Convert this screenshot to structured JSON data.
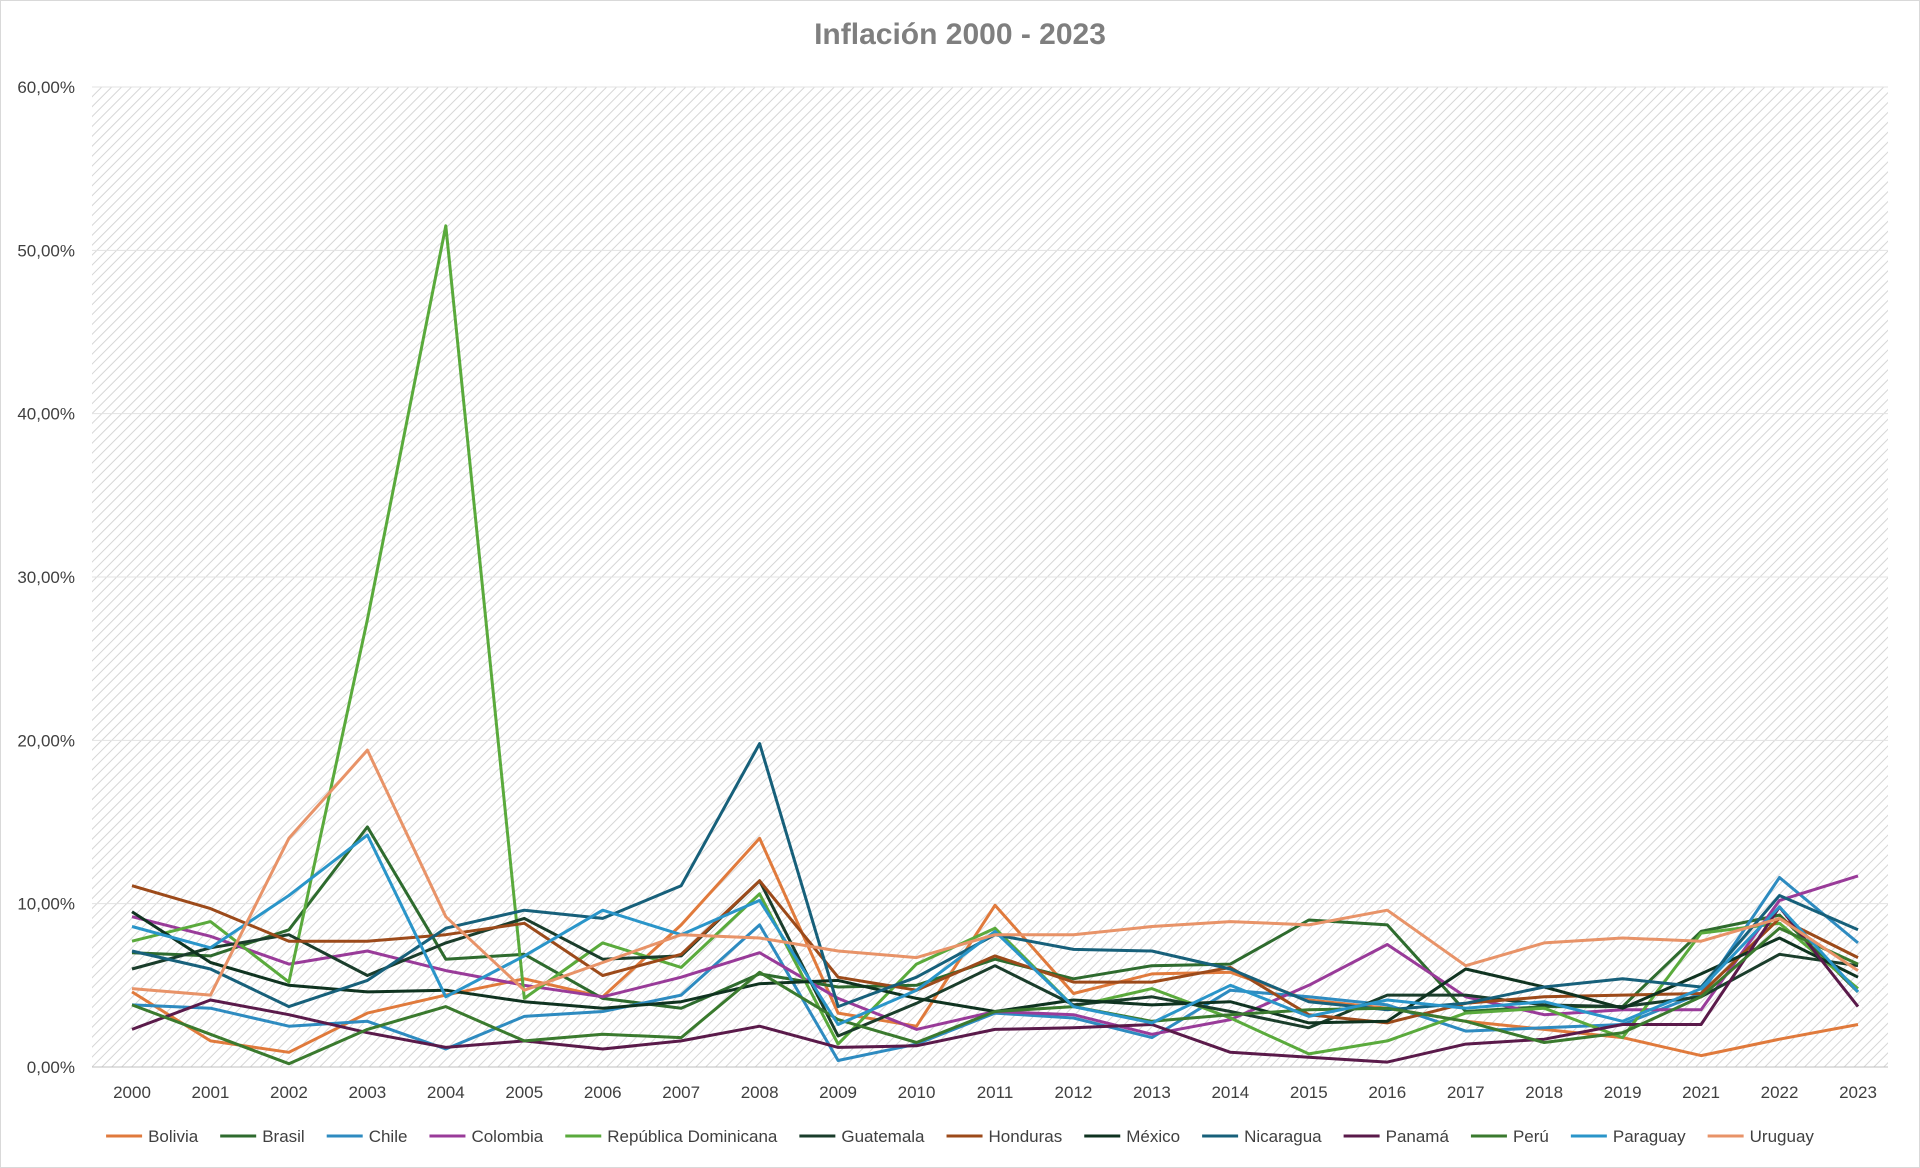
{
  "chart_data": {
    "type": "line",
    "title": "Inflación 2000 - 2023",
    "xlabel": "",
    "ylabel": "",
    "x": [
      "2000",
      "2001",
      "2002",
      "2003",
      "2004",
      "2005",
      "2006",
      "2007",
      "2008",
      "2009",
      "2010",
      "2011",
      "2012",
      "2013",
      "2014",
      "2015",
      "2016",
      "2017",
      "2018",
      "2019",
      "2021",
      "2022",
      "2023"
    ],
    "ylim": [
      0,
      60
    ],
    "y_ticks": [
      "0,00%",
      "10,00%",
      "20,00%",
      "30,00%",
      "40,00%",
      "50,00%",
      "60,00%"
    ],
    "grid": true,
    "legend_position": "bottom",
    "series": [
      {
        "name": "Bolivia",
        "color": "#e07a3c",
        "values": [
          4.6,
          1.6,
          0.9,
          3.3,
          4.4,
          5.4,
          4.3,
          8.7,
          14.0,
          3.3,
          2.5,
          9.9,
          4.5,
          5.7,
          5.8,
          4.1,
          3.6,
          2.8,
          2.3,
          1.8,
          0.7,
          1.7,
          2.6
        ]
      },
      {
        "name": "Brasil",
        "color": "#2e6b2e",
        "values": [
          7.0,
          6.8,
          8.4,
          14.7,
          6.6,
          6.9,
          4.2,
          3.6,
          5.7,
          4.9,
          5.0,
          6.6,
          5.4,
          6.2,
          6.3,
          9.0,
          8.7,
          3.4,
          3.7,
          3.7,
          8.3,
          9.3,
          4.6
        ]
      },
      {
        "name": "Chile",
        "color": "#2e8bc0",
        "values": [
          3.8,
          3.6,
          2.5,
          2.8,
          1.1,
          3.1,
          3.4,
          4.4,
          8.7,
          0.4,
          1.4,
          3.3,
          3.0,
          1.8,
          4.7,
          4.3,
          3.8,
          2.2,
          2.4,
          2.6,
          4.5,
          11.6,
          7.6
        ]
      },
      {
        "name": "Colombia",
        "color": "#993b99",
        "values": [
          9.2,
          8.0,
          6.3,
          7.1,
          5.9,
          5.0,
          4.3,
          5.5,
          7.0,
          4.2,
          2.3,
          3.4,
          3.2,
          2.0,
          2.9,
          5.0,
          7.5,
          4.3,
          3.2,
          3.5,
          3.5,
          10.2,
          11.7
        ]
      },
      {
        "name": "República Dominicana",
        "color": "#5aaa3c",
        "values": [
          7.7,
          8.9,
          5.2,
          27.4,
          51.5,
          4.2,
          7.6,
          6.1,
          10.6,
          1.4,
          6.3,
          8.5,
          3.7,
          4.8,
          3.0,
          0.8,
          1.6,
          3.3,
          3.6,
          1.8,
          8.2,
          8.8,
          4.8
        ]
      },
      {
        "name": "Guatemala",
        "color": "#1a3d2b",
        "values": [
          6.0,
          7.3,
          8.1,
          5.6,
          7.6,
          9.1,
          6.6,
          6.8,
          11.4,
          1.9,
          3.9,
          6.2,
          3.8,
          4.3,
          3.4,
          2.4,
          4.4,
          4.4,
          3.8,
          3.7,
          4.3,
          6.9,
          6.2
        ]
      },
      {
        "name": "Honduras",
        "color": "#9c4a1a",
        "values": [
          11.1,
          9.7,
          7.7,
          7.7,
          8.1,
          8.8,
          5.6,
          6.9,
          11.4,
          5.5,
          4.7,
          6.8,
          5.2,
          5.2,
          6.1,
          3.2,
          2.7,
          3.9,
          4.3,
          4.4,
          4.5,
          9.1,
          6.7
        ]
      },
      {
        "name": "México",
        "color": "#0f3320",
        "values": [
          9.5,
          6.4,
          5.0,
          4.6,
          4.7,
          4.0,
          3.6,
          4.0,
          5.1,
          5.3,
          4.2,
          3.4,
          4.1,
          3.8,
          4.0,
          2.7,
          2.8,
          6.0,
          4.9,
          3.6,
          5.7,
          7.9,
          5.5
        ]
      },
      {
        "name": "Nicaragua",
        "color": "#17607a",
        "values": [
          7.1,
          6.0,
          3.7,
          5.3,
          8.5,
          9.6,
          9.1,
          11.1,
          19.8,
          3.7,
          5.5,
          8.1,
          7.2,
          7.1,
          6.0,
          4.0,
          3.5,
          3.9,
          4.9,
          5.4,
          4.9,
          10.5,
          8.4
        ]
      },
      {
        "name": "Panamá",
        "color": "#5a1a4a",
        "values": [
          2.3,
          4.1,
          3.2,
          2.1,
          1.2,
          1.6,
          1.1,
          1.6,
          2.5,
          1.2,
          1.3,
          2.3,
          2.4,
          2.6,
          0.9,
          0.6,
          0.3,
          1.4,
          1.7,
          2.6,
          2.6,
          9.8,
          3.7
        ]
      },
      {
        "name": "Perú",
        "color": "#3a7a2e",
        "values": [
          3.8,
          2.0,
          0.2,
          2.3,
          3.7,
          1.6,
          2.0,
          1.8,
          5.8,
          2.9,
          1.5,
          3.4,
          3.7,
          2.8,
          3.2,
          3.5,
          3.6,
          2.8,
          1.5,
          2.1,
          4.3,
          8.5,
          6.3
        ]
      },
      {
        "name": "Paraguay",
        "color": "#2a95c9",
        "values": [
          8.6,
          7.3,
          10.5,
          14.2,
          4.3,
          6.8,
          9.6,
          8.1,
          10.2,
          2.6,
          4.7,
          8.3,
          3.7,
          2.7,
          5.0,
          3.1,
          4.1,
          3.6,
          4.0,
          2.8,
          4.8,
          9.8,
          4.6
        ]
      },
      {
        "name": "Uruguay",
        "color": "#e89368",
        "values": [
          4.8,
          4.4,
          14.0,
          19.4,
          9.2,
          4.7,
          6.4,
          8.1,
          7.9,
          7.1,
          6.7,
          8.1,
          8.1,
          8.6,
          8.9,
          8.7,
          9.6,
          6.2,
          7.6,
          7.9,
          7.7,
          9.1,
          5.9
        ]
      }
    ]
  }
}
